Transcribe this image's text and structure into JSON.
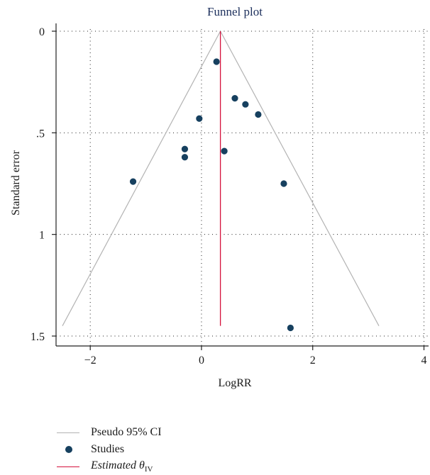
{
  "chart_data": {
    "type": "scatter",
    "title": "Funnel plot",
    "xlabel": "LogRR",
    "ylabel": "Standard error",
    "xlim": [
      -2.7,
      4.1
    ],
    "ylim": [
      1.5,
      0
    ],
    "y_reversed": true,
    "grid": true,
    "xticks": [
      -2,
      0,
      2,
      4
    ],
    "xtick_labels": [
      "−2",
      "0",
      "2",
      "4"
    ],
    "yticks": [
      0,
      0.5,
      1,
      1.5
    ],
    "ytick_labels": [
      "0",
      ".5",
      "1",
      "1.5"
    ],
    "estimate": 0.34,
    "pseudo_ci": {
      "apex": [
        0.34,
        0
      ],
      "left_end": [
        -2.5,
        1.45
      ],
      "right_end": [
        3.19,
        1.45
      ]
    },
    "estimate_line": {
      "x": 0.34,
      "y_from": 0,
      "y_to": 1.45
    },
    "series": [
      {
        "name": "Studies",
        "points": [
          {
            "x": 0.27,
            "y": 0.15
          },
          {
            "x": 0.6,
            "y": 0.33
          },
          {
            "x": 0.79,
            "y": 0.36
          },
          {
            "x": 1.02,
            "y": 0.41
          },
          {
            "x": -0.04,
            "y": 0.43
          },
          {
            "x": -0.3,
            "y": 0.58
          },
          {
            "x": -0.3,
            "y": 0.62
          },
          {
            "x": 0.41,
            "y": 0.59
          },
          {
            "x": -1.23,
            "y": 0.74
          },
          {
            "x": 1.48,
            "y": 0.75
          },
          {
            "x": 1.6,
            "y": 1.46
          }
        ]
      }
    ],
    "legend": {
      "position": "bottom-left",
      "items": [
        {
          "label": "Pseudo 95% CI",
          "kind": "line",
          "color": "#b3b3b3"
        },
        {
          "label": "Studies",
          "kind": "dot",
          "color": "#16405f"
        },
        {
          "label": "Estimated θ",
          "sub": "IV",
          "kind": "line",
          "color": "#d4103c"
        }
      ]
    },
    "colors": {
      "ci": "#b3b3b3",
      "points": "#16405f",
      "estimate": "#d4103c",
      "title": "#1c2f5c",
      "axis": "#222222",
      "grid": "#222222"
    }
  }
}
